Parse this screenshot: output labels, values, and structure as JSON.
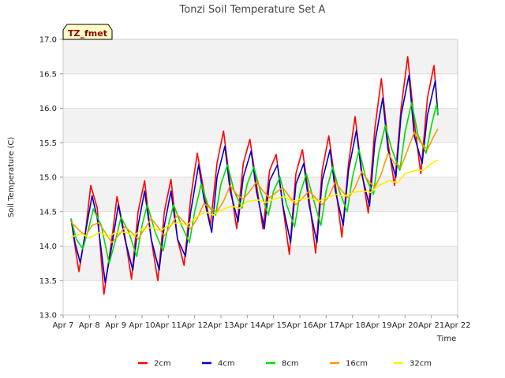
{
  "chart_data": {
    "type": "line",
    "title": "Tonzi Soil Temperature Set A",
    "xlabel": "Time",
    "ylabel": "Soil Temperature (C)",
    "site_tag": "TZ_fmet",
    "xlim": [
      7,
      22
    ],
    "ylim": [
      13.0,
      17.0
    ],
    "x_ticks": [
      7,
      8,
      9,
      10,
      11,
      12,
      13,
      14,
      15,
      16,
      17,
      18,
      19,
      20,
      21,
      22
    ],
    "x_tick_labels": [
      "Apr 7",
      "Apr 8",
      "Apr 9",
      "Apr 10",
      "Apr 11",
      "Apr 12",
      "Apr 13",
      "Apr 14",
      "Apr 15",
      "Apr 16",
      "Apr 17",
      "Apr 18",
      "Apr 19",
      "Apr 20",
      "Apr 21",
      "Apr 22"
    ],
    "y_ticks": [
      13.0,
      13.5,
      14.0,
      14.5,
      15.0,
      15.5,
      16.0,
      16.5,
      17.0
    ],
    "y_tick_labels": [
      "13.0",
      "13.5",
      "14.0",
      "14.5",
      "15.0",
      "15.5",
      "16.0",
      "16.5",
      "17.0"
    ],
    "grid": true,
    "legend_position": "bottom",
    "series": [
      {
        "name": "2cm",
        "color": "#ff0000",
        "x": [
          7.3,
          7.45,
          7.6,
          7.85,
          8.05,
          8.3,
          8.55,
          8.85,
          9.05,
          9.35,
          9.6,
          9.85,
          10.1,
          10.35,
          10.6,
          10.85,
          11.1,
          11.35,
          11.6,
          11.85,
          12.1,
          12.35,
          12.6,
          12.85,
          13.1,
          13.35,
          13.6,
          13.85,
          14.1,
          14.35,
          14.6,
          14.85,
          15.1,
          15.35,
          15.6,
          15.85,
          16.1,
          16.35,
          16.6,
          16.85,
          17.1,
          17.35,
          17.6,
          17.85,
          18.1,
          18.35,
          18.6,
          18.85,
          19.1,
          19.35,
          19.6,
          19.85,
          20.1,
          20.35,
          20.6,
          20.85,
          21.1,
          21.25
        ],
        "y": [
          14.4,
          14.0,
          13.63,
          14.2,
          14.88,
          14.55,
          13.3,
          14.1,
          14.72,
          14.15,
          13.52,
          14.5,
          14.95,
          14.1,
          13.5,
          14.5,
          14.97,
          14.1,
          13.72,
          14.7,
          15.35,
          14.8,
          14.3,
          15.2,
          15.67,
          14.9,
          14.25,
          15.2,
          15.55,
          14.9,
          14.25,
          15.1,
          15.33,
          14.6,
          13.88,
          15.05,
          15.4,
          14.7,
          13.9,
          15.1,
          15.6,
          14.9,
          14.13,
          15.2,
          15.88,
          15.1,
          14.48,
          15.7,
          16.43,
          15.5,
          14.88,
          16.0,
          16.75,
          15.8,
          15.05,
          16.15,
          16.62,
          15.9
        ]
      },
      {
        "name": "4cm",
        "color": "#0000cc",
        "x": [
          7.3,
          7.45,
          7.65,
          7.85,
          8.1,
          8.3,
          8.6,
          8.85,
          9.1,
          9.35,
          9.65,
          9.85,
          10.1,
          10.35,
          10.65,
          10.85,
          11.1,
          11.35,
          11.65,
          11.85,
          12.15,
          12.35,
          12.65,
          12.85,
          13.15,
          13.35,
          13.65,
          13.85,
          14.15,
          14.35,
          14.65,
          14.85,
          15.15,
          15.35,
          15.65,
          15.85,
          16.15,
          16.35,
          16.65,
          16.85,
          17.15,
          17.35,
          17.65,
          17.85,
          18.15,
          18.35,
          18.65,
          18.85,
          19.15,
          19.35,
          19.65,
          19.85,
          20.15,
          20.35,
          20.65,
          20.85,
          21.15,
          21.25
        ],
        "y": [
          14.4,
          14.05,
          13.76,
          14.2,
          14.73,
          14.4,
          13.47,
          14.0,
          14.6,
          14.1,
          13.65,
          14.3,
          14.8,
          14.1,
          13.65,
          14.3,
          14.8,
          14.1,
          13.85,
          14.5,
          15.18,
          14.7,
          14.2,
          15.0,
          15.45,
          14.8,
          14.35,
          15.0,
          15.38,
          14.8,
          14.25,
          14.95,
          15.18,
          14.6,
          14.05,
          14.9,
          15.2,
          14.6,
          14.05,
          14.95,
          15.4,
          14.8,
          14.3,
          15.1,
          15.68,
          15.05,
          14.58,
          15.5,
          16.15,
          15.4,
          15.0,
          15.9,
          16.48,
          15.6,
          15.2,
          15.9,
          16.4,
          15.9
        ]
      },
      {
        "name": "8cm",
        "color": "#00dd00",
        "x": [
          7.3,
          7.5,
          7.75,
          8.0,
          8.15,
          8.45,
          8.75,
          9.0,
          9.2,
          9.5,
          9.8,
          10.0,
          10.2,
          10.5,
          10.8,
          11.0,
          11.2,
          11.5,
          11.8,
          12.0,
          12.25,
          12.5,
          12.8,
          13.0,
          13.25,
          13.5,
          13.8,
          14.0,
          14.25,
          14.5,
          14.8,
          15.0,
          15.25,
          15.5,
          15.8,
          16.0,
          16.25,
          16.5,
          16.8,
          17.0,
          17.25,
          17.5,
          17.8,
          18.0,
          18.25,
          18.5,
          18.8,
          19.0,
          19.25,
          19.5,
          19.8,
          20.0,
          20.25,
          20.5,
          20.8,
          21.0,
          21.2,
          21.25
        ],
        "y": [
          14.4,
          14.1,
          13.96,
          14.3,
          14.54,
          14.3,
          13.75,
          14.1,
          14.42,
          14.2,
          13.85,
          14.3,
          14.6,
          14.2,
          13.93,
          14.3,
          14.6,
          14.3,
          14.05,
          14.5,
          14.9,
          14.6,
          14.45,
          14.9,
          15.18,
          14.8,
          14.55,
          14.9,
          15.15,
          14.8,
          14.45,
          14.8,
          15.0,
          14.6,
          14.28,
          14.75,
          15.05,
          14.7,
          14.3,
          14.8,
          15.15,
          14.8,
          14.5,
          15.0,
          15.4,
          15.0,
          14.75,
          15.35,
          15.75,
          15.4,
          15.1,
          15.65,
          16.08,
          15.6,
          15.35,
          15.75,
          16.06,
          15.9
        ]
      },
      {
        "name": "16cm",
        "color": "#ff9900",
        "x": [
          7.3,
          7.55,
          7.85,
          8.1,
          8.35,
          8.6,
          8.85,
          9.1,
          9.35,
          9.6,
          9.85,
          10.1,
          10.35,
          10.6,
          10.85,
          11.1,
          11.35,
          11.6,
          11.85,
          12.1,
          12.35,
          12.6,
          12.85,
          13.1,
          13.35,
          13.6,
          13.85,
          14.1,
          14.35,
          14.6,
          14.85,
          15.1,
          15.35,
          15.6,
          15.85,
          16.1,
          16.35,
          16.6,
          16.85,
          17.1,
          17.35,
          17.6,
          17.85,
          18.1,
          18.35,
          18.6,
          18.85,
          19.1,
          19.35,
          19.6,
          19.85,
          20.1,
          20.35,
          20.6,
          20.85,
          21.1,
          21.25
        ],
        "y": [
          14.35,
          14.25,
          14.15,
          14.3,
          14.34,
          14.2,
          14.05,
          14.15,
          14.28,
          14.2,
          14.1,
          14.25,
          14.4,
          14.28,
          14.15,
          14.3,
          14.45,
          14.35,
          14.25,
          14.4,
          14.62,
          14.55,
          14.5,
          14.65,
          14.88,
          14.75,
          14.68,
          14.8,
          14.93,
          14.8,
          14.7,
          14.78,
          14.85,
          14.72,
          14.6,
          14.7,
          14.8,
          14.7,
          14.6,
          14.72,
          14.93,
          14.8,
          14.7,
          14.85,
          15.08,
          14.95,
          14.85,
          15.05,
          15.35,
          15.2,
          15.15,
          15.4,
          15.65,
          15.5,
          15.4,
          15.6,
          15.7
        ]
      },
      {
        "name": "32cm",
        "color": "#ffee00",
        "x": [
          7.3,
          7.7,
          8.0,
          8.4,
          8.7,
          9.0,
          9.4,
          9.7,
          10.0,
          10.4,
          10.7,
          11.0,
          11.4,
          11.7,
          12.0,
          12.4,
          12.7,
          13.0,
          13.4,
          13.7,
          14.0,
          14.4,
          14.7,
          15.0,
          15.4,
          15.7,
          16.0,
          16.4,
          16.7,
          17.0,
          17.4,
          17.7,
          18.0,
          18.4,
          18.7,
          19.0,
          19.4,
          19.7,
          20.0,
          20.4,
          20.7,
          21.0,
          21.25
        ],
        "y": [
          14.13,
          14.18,
          14.12,
          14.2,
          14.13,
          14.2,
          14.2,
          14.15,
          14.25,
          14.27,
          14.22,
          14.3,
          14.35,
          14.3,
          14.4,
          14.5,
          14.45,
          14.52,
          14.58,
          14.55,
          14.65,
          14.67,
          14.63,
          14.68,
          14.72,
          14.65,
          14.68,
          14.7,
          14.65,
          14.7,
          14.75,
          14.72,
          14.78,
          14.8,
          14.78,
          14.88,
          14.95,
          14.92,
          15.05,
          15.1,
          15.1,
          15.2,
          15.25
        ]
      }
    ]
  }
}
